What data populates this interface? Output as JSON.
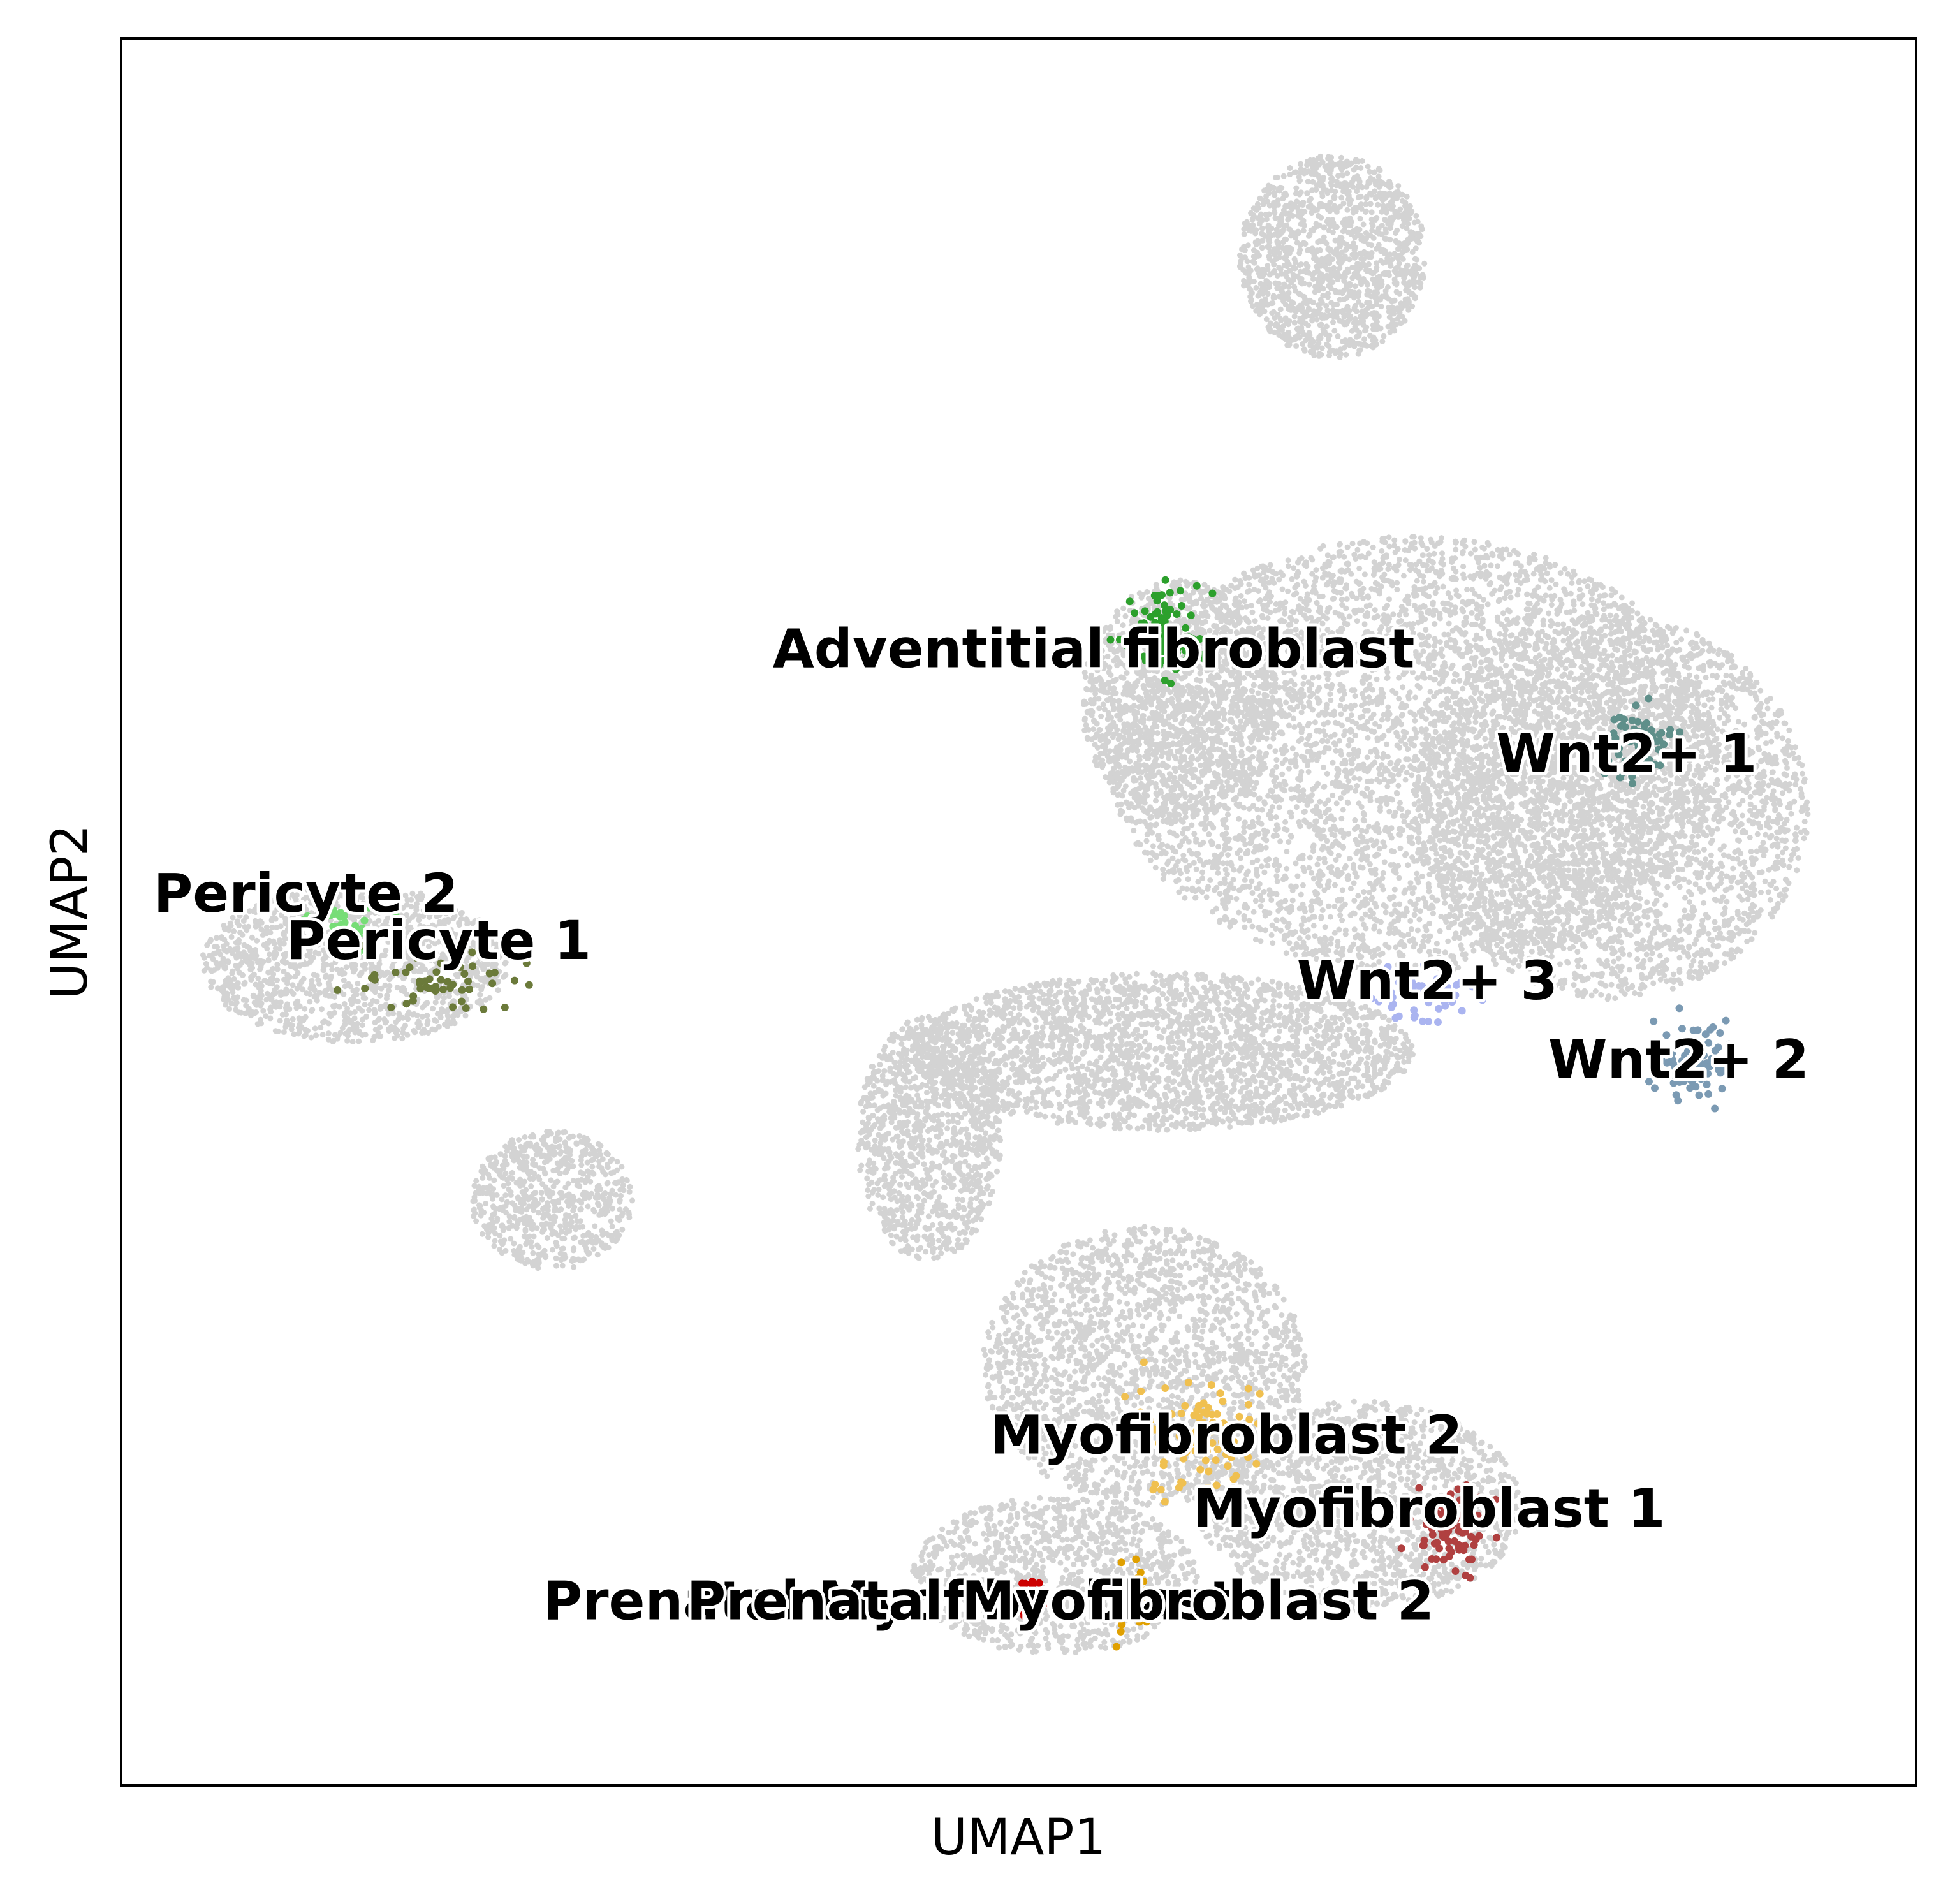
{
  "chart_data": {
    "type": "scatter",
    "xlabel": "UMAP1",
    "ylabel": "UMAP2",
    "xlim": [
      0,
      100
    ],
    "ylim": [
      0,
      100
    ],
    "grid": false,
    "legend": "none",
    "background_color": "#d3d3d3",
    "background_regions": [
      {
        "cx": 67.5,
        "cy": 87.5,
        "rx": 5.2,
        "ry": 5.8,
        "n": 1400
      },
      {
        "cx": 72.0,
        "cy": 59.0,
        "rx": 17.0,
        "ry": 12.5,
        "n": 5200
      },
      {
        "cx": 83.0,
        "cy": 56.0,
        "rx": 11.0,
        "ry": 11.0,
        "n": 3200
      },
      {
        "cx": 59.0,
        "cy": 62.0,
        "rx": 5.5,
        "ry": 7.0,
        "n": 1300
      },
      {
        "cx": 58.0,
        "cy": 42.0,
        "rx": 14.0,
        "ry": 4.5,
        "n": 2600
      },
      {
        "cx": 45.0,
        "cy": 37.0,
        "rx": 4.0,
        "ry": 7.0,
        "n": 1100
      },
      {
        "cx": 57.0,
        "cy": 24.0,
        "rx": 9.0,
        "ry": 8.0,
        "n": 2000
      },
      {
        "cx": 69.0,
        "cy": 16.0,
        "rx": 9.0,
        "ry": 6.0,
        "n": 1600
      },
      {
        "cx": 52.0,
        "cy": 12.0,
        "rx": 8.0,
        "ry": 4.5,
        "n": 1100
      },
      {
        "cx": 13.0,
        "cy": 47.0,
        "rx": 8.5,
        "ry": 4.5,
        "n": 1400
      },
      {
        "cx": 24.0,
        "cy": 33.5,
        "rx": 4.5,
        "ry": 4.0,
        "n": 700
      }
    ],
    "series": [
      {
        "name": "Adventitial fibroblast",
        "color": "#2ca02c",
        "cx": 58.0,
        "cy": 66.0,
        "sx": 2.2,
        "sy": 2.5,
        "n": 90
      },
      {
        "name": "Wnt2+ 1",
        "color": "#5f8f8a",
        "cx": 84.5,
        "cy": 59.5,
        "sx": 2.0,
        "sy": 2.0,
        "n": 70
      },
      {
        "name": "Wnt2+ 3",
        "color": "#aab4f0",
        "cx": 72.5,
        "cy": 45.5,
        "sx": 3.0,
        "sy": 1.6,
        "n": 65
      },
      {
        "name": "Wnt2+ 2",
        "color": "#7b9ab3",
        "cx": 87.5,
        "cy": 41.5,
        "sx": 2.0,
        "sy": 2.5,
        "n": 70
      },
      {
        "name": "Pericyte 2",
        "color": "#77dd77",
        "cx": 12.0,
        "cy": 49.5,
        "sx": 2.6,
        "sy": 1.6,
        "n": 45
      },
      {
        "name": "Pericyte 1",
        "color": "#6b7a3a",
        "cx": 18.0,
        "cy": 46.0,
        "sx": 5.5,
        "sy": 1.8,
        "n": 50
      },
      {
        "name": "Myofibroblast 2",
        "color": "#f0c050",
        "cx": 60.0,
        "cy": 20.0,
        "sx": 3.5,
        "sy": 3.5,
        "n": 80
      },
      {
        "name": "Myofibroblast 1",
        "color": "#b04040",
        "cx": 74.0,
        "cy": 15.0,
        "sx": 2.5,
        "sy": 2.5,
        "n": 85
      },
      {
        "name": "Prenatal Myofibroblast 2",
        "color": "#e0a000",
        "cx": 56.5,
        "cy": 10.5,
        "sx": 1.2,
        "sy": 2.0,
        "n": 60
      },
      {
        "name": "Prenatal Myofibroblast",
        "color": "#cc0000",
        "cx": 50.5,
        "cy": 10.5,
        "sx": 1.0,
        "sy": 1.3,
        "n": 30
      }
    ],
    "annotations": [
      {
        "text": "Adventitial fibroblast",
        "x": 36.3,
        "y": 64.0
      },
      {
        "text": "Wnt2+ 1",
        "x": 76.6,
        "y": 58.0
      },
      {
        "text": "Wnt2+ 3",
        "x": 65.5,
        "y": 45.0
      },
      {
        "text": "Wnt2+ 2",
        "x": 79.5,
        "y": 40.5
      },
      {
        "text": "Pericyte 2",
        "x": 1.8,
        "y": 50.0
      },
      {
        "text": "Pericyte 1",
        "x": 9.2,
        "y": 47.3
      },
      {
        "text": "Myofibroblast 2",
        "x": 48.4,
        "y": 19.0
      },
      {
        "text": "Myofibroblast 1",
        "x": 59.7,
        "y": 14.8
      },
      {
        "text": "Prenatal Myofibroblast",
        "x": 23.5,
        "y": 9.5
      },
      {
        "text": "Prenatal Myofibroblast 2",
        "x": 31.5,
        "y": 9.5
      }
    ]
  }
}
